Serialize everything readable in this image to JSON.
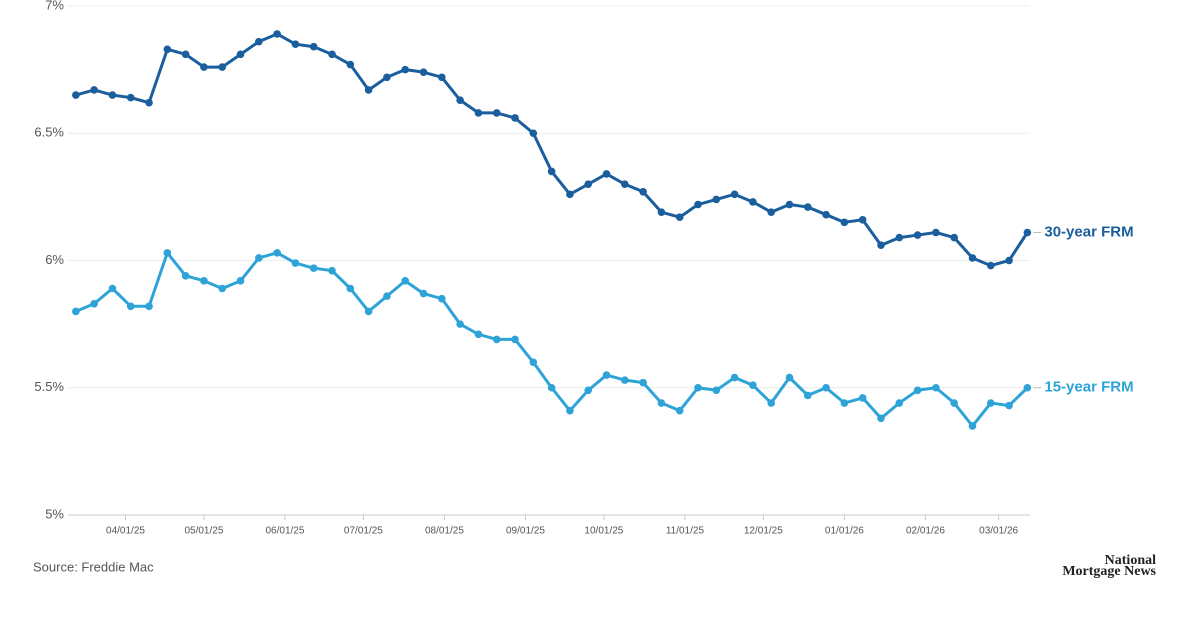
{
  "chart_data": {
    "type": "line",
    "x": [
      "2025-03-13",
      "2025-03-20",
      "2025-03-27",
      "2025-04-03",
      "2025-04-10",
      "2025-04-17",
      "2025-04-24",
      "2025-05-01",
      "2025-05-08",
      "2025-05-15",
      "2025-05-22",
      "2025-05-29",
      "2025-06-05",
      "2025-06-12",
      "2025-06-19",
      "2025-06-26",
      "2025-07-03",
      "2025-07-10",
      "2025-07-17",
      "2025-07-24",
      "2025-07-31",
      "2025-08-07",
      "2025-08-14",
      "2025-08-21",
      "2025-08-28",
      "2025-09-04",
      "2025-09-11",
      "2025-09-18",
      "2025-09-25",
      "2025-10-02",
      "2025-10-09",
      "2025-10-16",
      "2025-10-23",
      "2025-10-30",
      "2025-11-06",
      "2025-11-13",
      "2025-11-20",
      "2025-11-27",
      "2025-12-04",
      "2025-12-11",
      "2025-12-18",
      "2025-12-25",
      "2026-01-01",
      "2026-01-08",
      "2026-01-15",
      "2026-01-22",
      "2026-01-29",
      "2026-02-05",
      "2026-02-12",
      "2026-02-19",
      "2026-02-26",
      "2026-03-05",
      "2026-03-12"
    ],
    "series": [
      {
        "name": "30-year FRM",
        "color": "#1a5e9e",
        "values": [
          6.65,
          6.67,
          6.65,
          6.64,
          6.62,
          6.83,
          6.81,
          6.76,
          6.76,
          6.81,
          6.86,
          6.89,
          6.85,
          6.84,
          6.81,
          6.77,
          6.67,
          6.72,
          6.75,
          6.74,
          6.72,
          6.63,
          6.58,
          6.58,
          6.56,
          6.5,
          6.35,
          6.26,
          6.3,
          6.34,
          6.3,
          6.27,
          6.19,
          6.17,
          6.22,
          6.24,
          6.26,
          6.23,
          6.19,
          6.22,
          6.21,
          6.18,
          6.15,
          6.16,
          6.06,
          6.09,
          6.1,
          6.11,
          6.09,
          6.01,
          5.98,
          6.0,
          6.11
        ]
      },
      {
        "name": "15-year FRM",
        "color": "#2ea3d8",
        "values": [
          5.8,
          5.83,
          5.89,
          5.82,
          5.82,
          6.03,
          5.94,
          5.92,
          5.89,
          5.92,
          6.01,
          6.03,
          5.99,
          5.97,
          5.96,
          5.89,
          5.8,
          5.86,
          5.92,
          5.87,
          5.85,
          5.75,
          5.71,
          5.69,
          5.69,
          5.6,
          5.5,
          5.41,
          5.49,
          5.55,
          5.53,
          5.52,
          5.44,
          5.41,
          5.5,
          5.49,
          5.54,
          5.51,
          5.44,
          5.54,
          5.47,
          5.5,
          5.44,
          5.46,
          5.38,
          5.44,
          5.49,
          5.5,
          5.44,
          5.35,
          5.44,
          5.43,
          5.5
        ]
      }
    ],
    "xlim": [
      "2025-03-10",
      "2026-03-13"
    ],
    "xticks": [
      {
        "value": "2025-04-01",
        "label": "04/01/25"
      },
      {
        "value": "2025-05-01",
        "label": "05/01/25"
      },
      {
        "value": "2025-06-01",
        "label": "06/01/25"
      },
      {
        "value": "2025-07-01",
        "label": "07/01/25"
      },
      {
        "value": "2025-08-01",
        "label": "08/01/25"
      },
      {
        "value": "2025-09-01",
        "label": "09/01/25"
      },
      {
        "value": "2025-10-01",
        "label": "10/01/25"
      },
      {
        "value": "2025-11-01",
        "label": "11/01/25"
      },
      {
        "value": "2025-12-01",
        "label": "12/01/25"
      },
      {
        "value": "2026-01-01",
        "label": "01/01/26"
      },
      {
        "value": "2026-02-01",
        "label": "02/01/26"
      },
      {
        "value": "2026-03-01",
        "label": "03/01/26"
      }
    ],
    "ylim": [
      5,
      7
    ],
    "yticks": [
      {
        "value": 5,
        "label": "5%"
      },
      {
        "value": 5.5,
        "label": "5.5%"
      },
      {
        "value": 6,
        "label": "6%"
      },
      {
        "value": 6.5,
        "label": "6.5%"
      },
      {
        "value": 7,
        "label": "7%"
      }
    ],
    "grid": true,
    "source": "Source: Freddie Mac",
    "logo": [
      "National",
      "Mortgage News"
    ]
  }
}
